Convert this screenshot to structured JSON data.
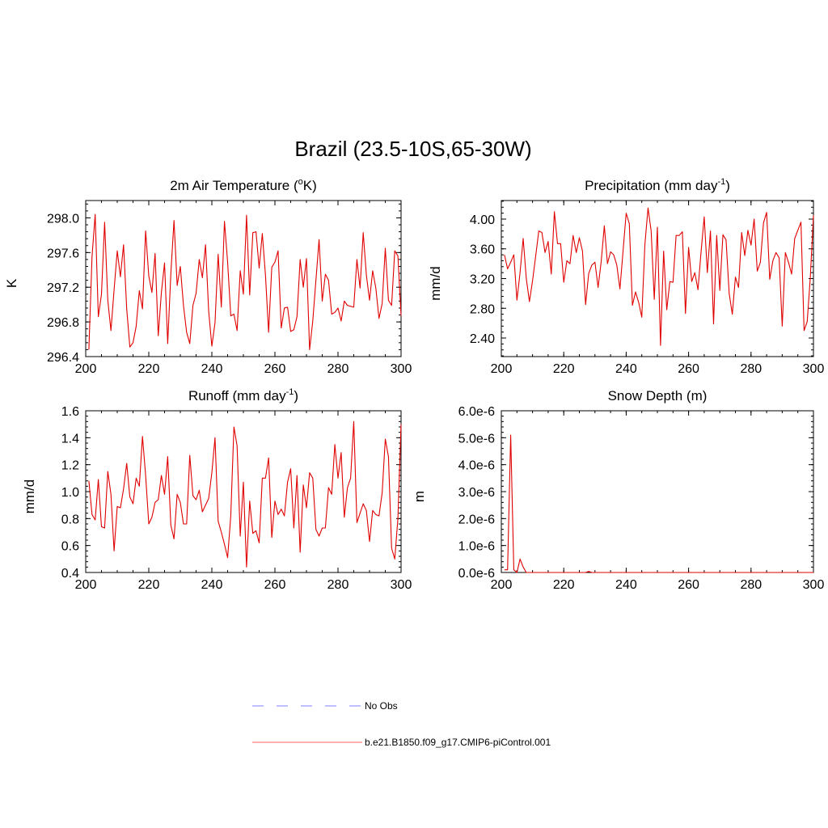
{
  "figure": {
    "title": "Brazil (23.5-10S,65-30W)",
    "line_color": "#e00000",
    "obs_color": "#9999ff"
  },
  "legend": {
    "items": [
      {
        "label": "No Obs",
        "style": "dashed",
        "color": "#9999ff"
      },
      {
        "label": "b.e21.B1850.f09_g17.CMIP6-piControl.001",
        "style": "solid",
        "color": "#ff8080"
      }
    ]
  },
  "chart_data": [
    {
      "type": "line",
      "title": "2m Air Temperature (",
      "title_sup": "o",
      "title_after": "K)",
      "ylabel": "K",
      "xlim": [
        200,
        300
      ],
      "ylim": [
        296.4,
        298.2
      ],
      "xticks": [
        200,
        220,
        240,
        260,
        280,
        300
      ],
      "xtick_labels": [
        "200",
        "220",
        "240",
        "260",
        "280",
        "300"
      ],
      "yticks": [
        296.4,
        296.8,
        297.2,
        297.6,
        298.0
      ],
      "ytick_labels": [
        "296.4",
        "296.8",
        "297.2",
        "297.6",
        "298.0"
      ],
      "series": [
        {
          "name": "b.e21.B1850.f09_g17.CMIP6-piControl.001",
          "x_start": 201,
          "x_step": 1,
          "values": [
            296.48,
            297.55,
            298.04,
            296.86,
            297.12,
            297.95,
            297.05,
            296.7,
            297.17,
            297.62,
            297.32,
            297.69,
            296.95,
            296.51,
            296.56,
            296.75,
            297.16,
            296.95,
            297.85,
            297.33,
            297.14,
            297.59,
            296.64,
            297.14,
            297.48,
            296.55,
            297.36,
            297.97,
            297.22,
            297.44,
            296.99,
            296.68,
            296.55,
            296.99,
            297.13,
            297.52,
            297.31,
            297.69,
            296.92,
            296.52,
            296.79,
            297.58,
            296.97,
            297.96,
            297.49,
            296.87,
            296.89,
            296.7,
            297.39,
            297.12,
            298.03,
            297.11,
            297.83,
            297.84,
            297.42,
            297.82,
            297.34,
            296.68,
            297.43,
            297.49,
            297.62,
            296.73,
            296.96,
            296.97,
            296.69,
            296.71,
            296.86,
            297.52,
            297.2,
            297.53,
            296.48,
            296.81,
            297.28,
            297.75,
            297.04,
            297.35,
            297.28,
            296.89,
            296.91,
            296.96,
            296.81,
            297.04,
            296.99,
            296.98,
            296.97,
            297.52,
            297.19,
            297.83,
            297.34,
            297.05,
            297.39,
            297.19,
            296.84,
            297.01,
            297.65,
            297.05,
            296.99,
            297.62,
            297.56,
            296.87
          ]
        }
      ]
    },
    {
      "type": "line",
      "title": "Precipitation (mm day",
      "title_sup": "-1",
      "title_after": ")",
      "ylabel": "mm/d",
      "xlim": [
        200,
        300
      ],
      "ylim": [
        2.15,
        4.25
      ],
      "xticks": [
        200,
        220,
        240,
        260,
        280,
        300
      ],
      "xtick_labels": [
        "200",
        "220",
        "240",
        "260",
        "280",
        "300"
      ],
      "yticks": [
        2.4,
        2.8,
        3.2,
        3.6,
        4.0
      ],
      "ytick_labels": [
        "2.40",
        "2.80",
        "3.20",
        "3.60",
        "4.00"
      ],
      "series": [
        {
          "name": "b.e21.B1850.f09_g17.CMIP6-piControl.001",
          "x_start": 201,
          "x_step": 1,
          "values": [
            3.52,
            3.33,
            3.42,
            3.52,
            2.91,
            3.28,
            3.74,
            3.2,
            2.89,
            3.17,
            3.5,
            3.84,
            3.82,
            3.55,
            3.7,
            3.26,
            4.1,
            3.67,
            3.67,
            3.15,
            3.44,
            3.4,
            3.78,
            3.55,
            3.75,
            3.57,
            2.85,
            3.27,
            3.38,
            3.42,
            3.08,
            3.43,
            3.91,
            3.4,
            3.56,
            3.52,
            3.38,
            3.06,
            3.57,
            4.08,
            3.94,
            2.84,
            3.02,
            2.88,
            2.68,
            3.66,
            4.15,
            3.84,
            2.92,
            3.89,
            2.3,
            3.57,
            2.78,
            3.16,
            3.15,
            3.78,
            3.78,
            3.83,
            2.73,
            3.62,
            3.16,
            3.28,
            3.05,
            3.56,
            4.03,
            3.28,
            3.84,
            2.59,
            3.78,
            3.04,
            3.79,
            3.72,
            3.0,
            2.72,
            3.22,
            3.08,
            3.82,
            3.51,
            3.85,
            3.65,
            4.0,
            3.3,
            3.42,
            3.95,
            4.09,
            3.19,
            3.44,
            3.55,
            3.48,
            2.56,
            3.55,
            3.42,
            3.26,
            3.74,
            3.85,
            3.96,
            2.5,
            2.62,
            3.22,
            4.05
          ]
        }
      ]
    },
    {
      "type": "line",
      "title": "Runoff (mm day",
      "title_sup": "-1",
      "title_after": ")",
      "ylabel": "mm/d",
      "xlim": [
        200,
        300
      ],
      "ylim": [
        0.4,
        1.6
      ],
      "xticks": [
        200,
        220,
        240,
        260,
        280,
        300
      ],
      "xtick_labels": [
        "200",
        "220",
        "240",
        "260",
        "280",
        "300"
      ],
      "yticks": [
        0.4,
        0.6,
        0.8,
        1.0,
        1.2,
        1.4,
        1.6
      ],
      "ytick_labels": [
        "0.4",
        "0.6",
        "0.8",
        "1.0",
        "1.2",
        "1.4",
        "1.6"
      ],
      "series": [
        {
          "name": "b.e21.B1850.f09_g17.CMIP6-piControl.001",
          "x_start": 201,
          "x_step": 1,
          "values": [
            1.08,
            0.83,
            0.79,
            1.09,
            0.74,
            0.73,
            1.15,
            0.98,
            0.56,
            0.89,
            0.88,
            1.02,
            1.21,
            0.96,
            0.91,
            1.1,
            1.04,
            1.41,
            1.12,
            0.76,
            0.81,
            0.92,
            0.94,
            1.12,
            0.98,
            1.26,
            0.75,
            0.65,
            0.98,
            0.92,
            0.76,
            0.76,
            1.27,
            0.97,
            0.94,
            1.01,
            0.85,
            0.9,
            0.95,
            1.14,
            1.4,
            0.78,
            0.7,
            0.61,
            0.51,
            0.82,
            1.48,
            1.34,
            0.67,
            1.07,
            0.44,
            0.93,
            0.69,
            0.71,
            0.62,
            1.1,
            1.1,
            1.25,
            0.66,
            0.93,
            0.83,
            0.87,
            0.82,
            1.07,
            1.17,
            0.73,
            1.12,
            0.55,
            1.05,
            0.88,
            1.14,
            1.1,
            0.72,
            0.67,
            0.73,
            0.73,
            1.03,
            0.98,
            1.35,
            1.1,
            1.29,
            0.81,
            1.03,
            1.1,
            1.52,
            0.77,
            0.84,
            0.91,
            0.86,
            0.63,
            0.86,
            0.83,
            0.82,
            0.99,
            1.39,
            1.26,
            0.58,
            0.5,
            0.8,
            1.5
          ]
        }
      ]
    },
    {
      "type": "line",
      "title": "Snow Depth (m)",
      "title_sup": "",
      "title_after": "",
      "ylabel": "m",
      "xlim": [
        200,
        300
      ],
      "ylim": [
        0,
        6e-06
      ],
      "xticks": [
        200,
        220,
        240,
        260,
        280,
        300
      ],
      "xtick_labels": [
        "200",
        "220",
        "240",
        "260",
        "280",
        "300"
      ],
      "yticks": [
        0,
        1e-06,
        2e-06,
        3e-06,
        4e-06,
        5e-06,
        6e-06
      ],
      "ytick_labels": [
        "0.0e-6",
        "1.0e-6",
        "2.0e-6",
        "3.0e-6",
        "4.0e-6",
        "5.0e-6",
        "6.0e-6"
      ],
      "series": [
        {
          "name": "b.e21.B1850.f09_g17.CMIP6-piControl.001",
          "x_start": 201,
          "x_step": 1,
          "values": [
            1e-07,
            1e-07,
            5.1e-06,
            1e-07,
            0,
            5e-07,
            2e-07,
            0,
            0,
            0,
            0,
            0,
            0,
            0,
            0,
            0,
            0,
            0,
            0,
            0,
            0,
            0,
            0,
            0,
            0,
            0,
            0,
            4e-08,
            0,
            0,
            0,
            0,
            0,
            0,
            0,
            0,
            0,
            0,
            0,
            0,
            0,
            0,
            0,
            0,
            0,
            0,
            0,
            0,
            0,
            0,
            0,
            0,
            0,
            0,
            0,
            0,
            0,
            0,
            0,
            0,
            0,
            0,
            0,
            0,
            0,
            0,
            0,
            0,
            0,
            0,
            0,
            0,
            0,
            0,
            0,
            0,
            0,
            0,
            0,
            0,
            0,
            0,
            0,
            0,
            0,
            0,
            0,
            0,
            0,
            0,
            0,
            0,
            0,
            0,
            0,
            0,
            0,
            0,
            0,
            0
          ]
        }
      ]
    }
  ]
}
